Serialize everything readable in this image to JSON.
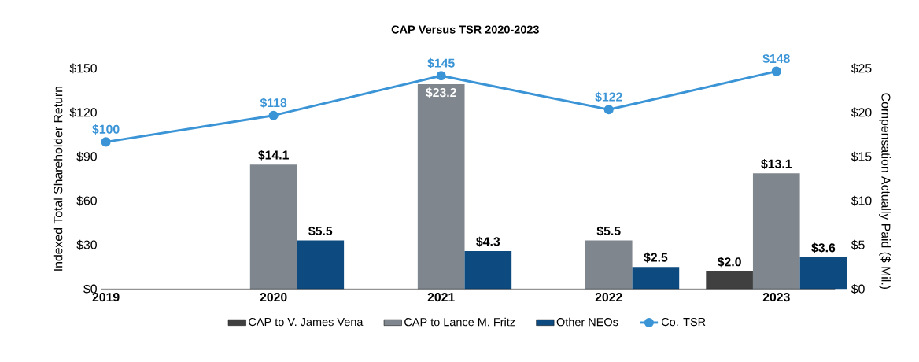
{
  "chart_data": {
    "type": "bar",
    "title": "CAP Versus TSR 2020-2023",
    "ylabel": "Indexed Total Shareholder Return",
    "y2label": "Compensation Actually Paid ($ Mil.)",
    "categories": [
      "2019",
      "2020",
      "2021",
      "2022",
      "2023"
    ],
    "series": [
      {
        "name": "CAP to V. James Vena",
        "color": "#404040",
        "axis": "y2",
        "values": [
          null,
          null,
          null,
          null,
          2.0
        ],
        "value_labels": [
          null,
          null,
          null,
          null,
          "$2.0"
        ]
      },
      {
        "name": "CAP to Lance M. Fritz",
        "color": "#7f868e",
        "axis": "y2",
        "values": [
          null,
          14.1,
          23.2,
          5.5,
          13.1
        ],
        "value_labels": [
          null,
          "$14.1",
          "$23.2",
          "$5.5",
          "$13.1"
        ]
      },
      {
        "name": "Other NEOs",
        "color": "#0c4a7f",
        "axis": "y2",
        "values": [
          null,
          5.5,
          4.3,
          2.5,
          3.6
        ],
        "value_labels": [
          null,
          "$5.5",
          "$4.3",
          "$2.5",
          "$3.6"
        ]
      },
      {
        "name": "Co. TSR",
        "type": "line",
        "color": "#3a94d6",
        "values": [
          100,
          118,
          145,
          122,
          148
        ],
        "value_labels": [
          "$100",
          "$118",
          "$145",
          "$122",
          "$148"
        ]
      }
    ],
    "ylim": [
      0,
      150
    ],
    "yticks": [
      {
        "value": 0,
        "label": "$0"
      },
      {
        "value": 30,
        "label": "$30"
      },
      {
        "value": 60,
        "label": "$60"
      },
      {
        "value": 90,
        "label": "$90"
      },
      {
        "value": 120,
        "label": "$120"
      },
      {
        "value": 150,
        "label": "$150"
      }
    ],
    "y2lim": [
      0,
      25
    ],
    "y2ticks": [
      {
        "value": 0,
        "label": "$0"
      },
      {
        "value": 5,
        "label": "$5"
      },
      {
        "value": 10,
        "label": "$10"
      },
      {
        "value": 15,
        "label": "$15"
      },
      {
        "value": 20,
        "label": "$20"
      },
      {
        "value": 25,
        "label": "$25"
      }
    ],
    "legend": "bottom",
    "marker": "circle",
    "line_style": "solid"
  }
}
